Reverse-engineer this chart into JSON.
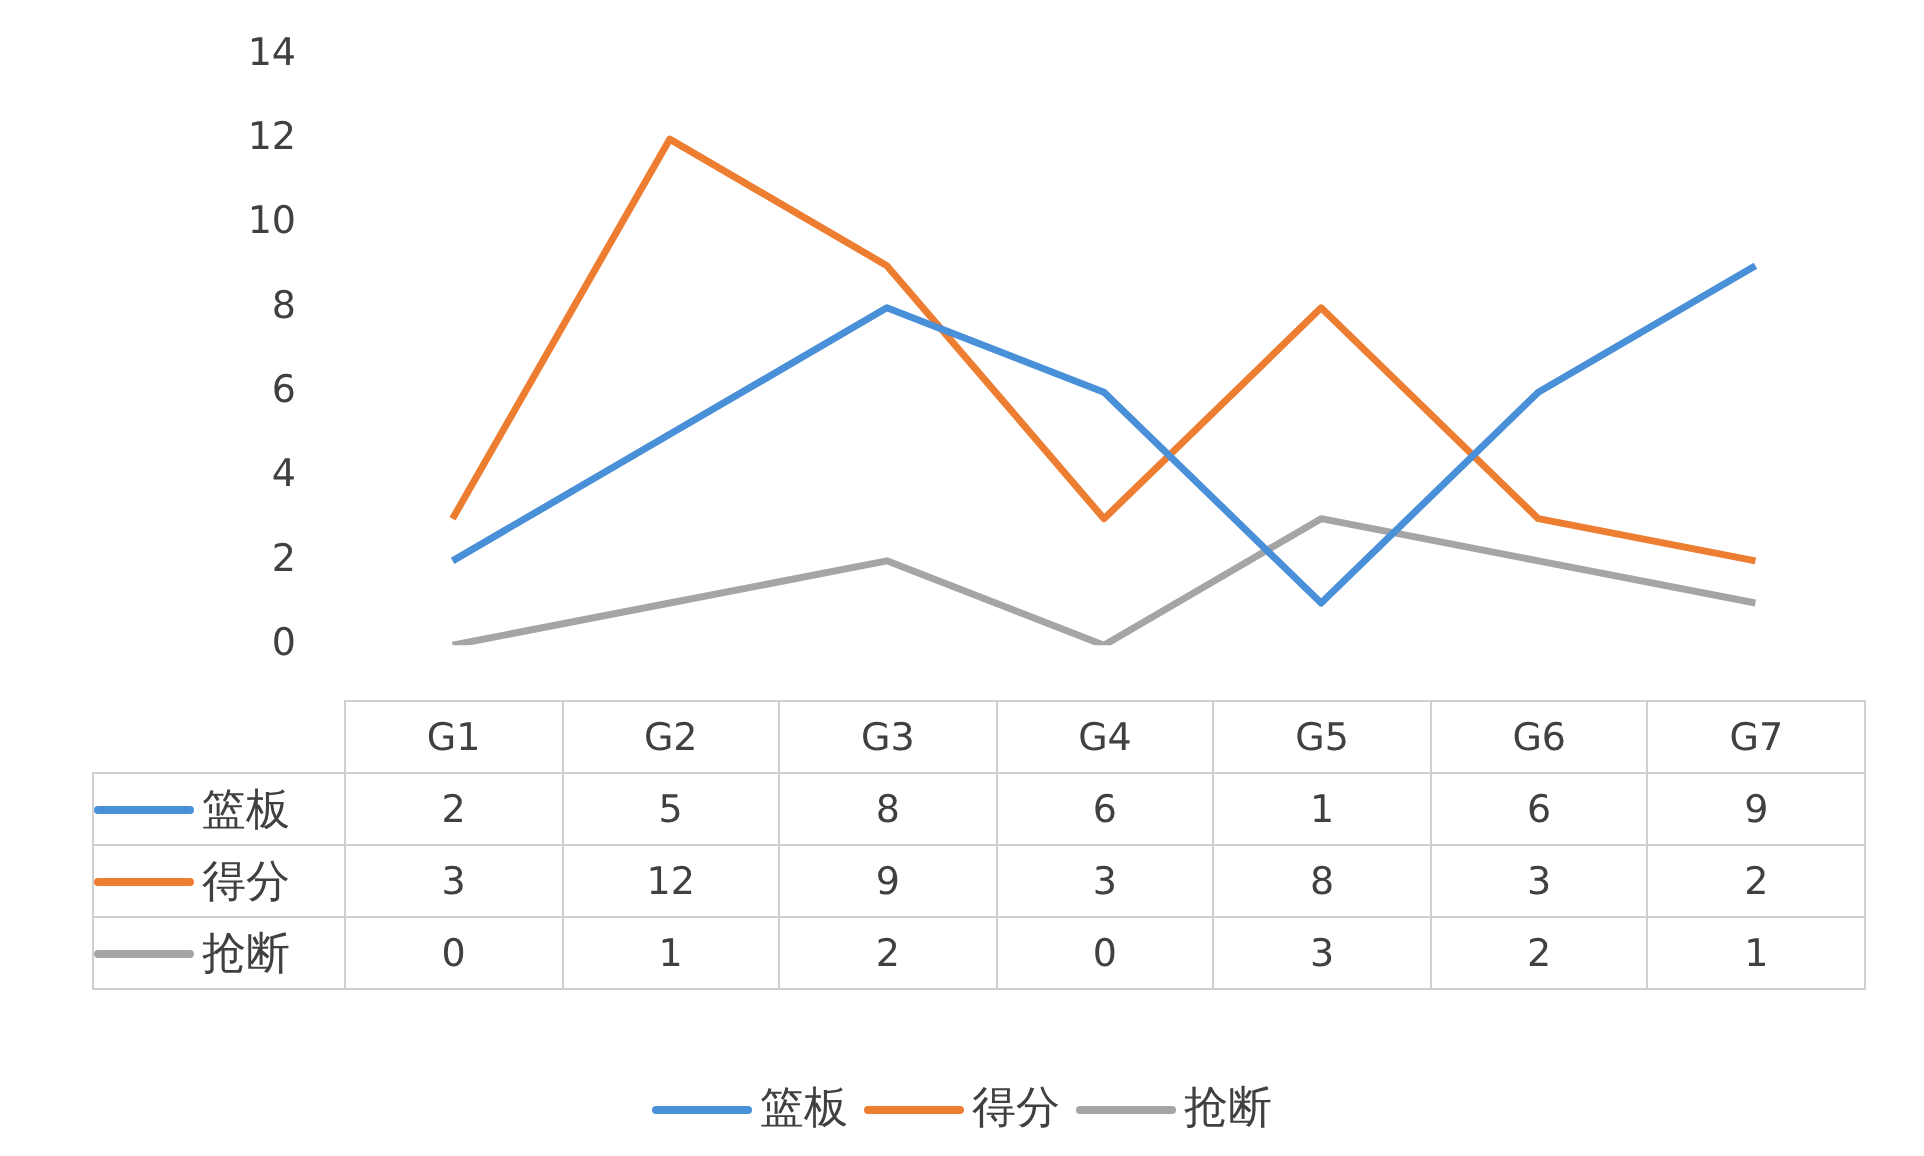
{
  "chart_data": {
    "type": "line",
    "categories": [
      "G1",
      "G2",
      "G3",
      "G4",
      "G5",
      "G6",
      "G7"
    ],
    "series": [
      {
        "name": "篮板",
        "color": "#4a90d9",
        "values": [
          2,
          5,
          8,
          6,
          1,
          6,
          9
        ]
      },
      {
        "name": "得分",
        "color": "#ed7d31",
        "values": [
          3,
          12,
          9,
          3,
          8,
          3,
          2
        ]
      },
      {
        "name": "抢断",
        "color": "#a5a5a5",
        "values": [
          0,
          1,
          2,
          0,
          3,
          2,
          1
        ]
      }
    ],
    "ylim": [
      0,
      14
    ],
    "yticks": [
      0,
      2,
      4,
      6,
      8,
      10,
      12,
      14
    ],
    "grid": false,
    "legend": "bottom",
    "data_labels": true,
    "marker": "none",
    "line_style": "solid"
  }
}
